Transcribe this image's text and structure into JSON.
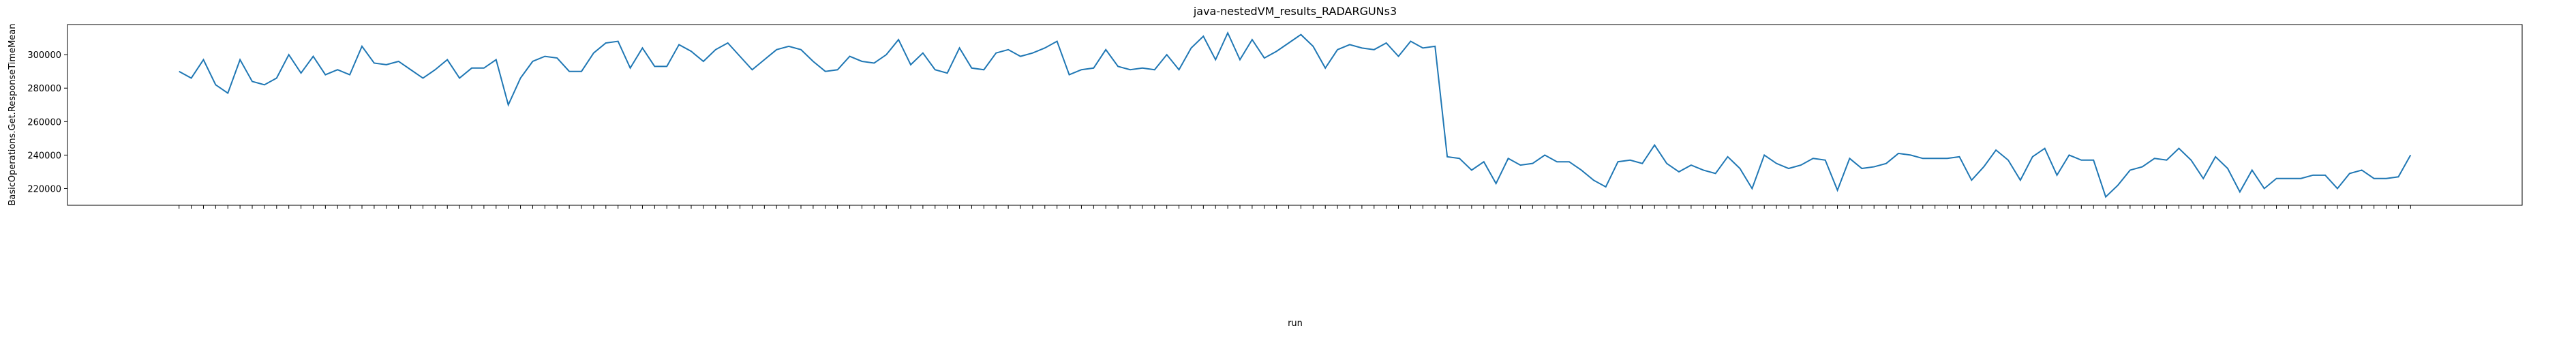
{
  "chart_data": {
    "type": "line",
    "title": "java-nestedVM_results_RADARGUNs3",
    "x_label": "run",
    "y_label": "BasicOperations.Get.ResponseTimeMean",
    "ylim": [
      210000,
      318000
    ],
    "yticks": [
      220000,
      240000,
      260000,
      280000,
      300000
    ],
    "grid": false,
    "categories": [
      null,
      null,
      null,
      null,
      null,
      null,
      null,
      null,
      null,
      null,
      null,
      null,
      null,
      null,
      null,
      null,
      null,
      null,
      null,
      null,
      null,
      null,
      null,
      null,
      null,
      null,
      null,
      null,
      null,
      null,
      null,
      null,
      null,
      null,
      null,
      null,
      null,
      null,
      null,
      null,
      null,
      null,
      null,
      null,
      null,
      null,
      null,
      null,
      null,
      null,
      null,
      null,
      null,
      null,
      null,
      null,
      null,
      null,
      null,
      null,
      null,
      null,
      null,
      null,
      null,
      null,
      null,
      null,
      null,
      null,
      null,
      null,
      null,
      null,
      null,
      null,
      null,
      null,
      null,
      null,
      null,
      null,
      null,
      null,
      null,
      null,
      null,
      null,
      null,
      null,
      null,
      null,
      null,
      null,
      null,
      null,
      null,
      null,
      null,
      null,
      null,
      null,
      null,
      null,
      null,
      null,
      null,
      null,
      null,
      null,
      null,
      null,
      null,
      null,
      null,
      null,
      null,
      null,
      null,
      null,
      null,
      null,
      null,
      null,
      null,
      null,
      null,
      null,
      null,
      null,
      null,
      null,
      null,
      null,
      null,
      null,
      null,
      null,
      null,
      null,
      null,
      null,
      null,
      null,
      null,
      null,
      null,
      null,
      null,
      null,
      null,
      null,
      null,
      null,
      null,
      null,
      null,
      null,
      null,
      null,
      null,
      null,
      null,
      null,
      null,
      null,
      null,
      null,
      null,
      null,
      null,
      null,
      null,
      null,
      null,
      null,
      null,
      null,
      null,
      null,
      null,
      null,
      null,
      null
    ],
    "series": [
      {
        "name": "BasicOperations.Get.ResponseTimeMean",
        "color": "#1f77b4",
        "values": [
          290000,
          286000,
          297000,
          282000,
          277000,
          297000,
          284000,
          282000,
          286000,
          300000,
          289000,
          299000,
          288000,
          291000,
          288000,
          305000,
          295000,
          294000,
          296000,
          291000,
          286000,
          291000,
          297000,
          286000,
          292000,
          292000,
          297000,
          270000,
          286000,
          296000,
          299000,
          298000,
          290000,
          290000,
          301000,
          307000,
          308000,
          292000,
          304000,
          293000,
          293000,
          306000,
          302000,
          296000,
          303000,
          307000,
          299000,
          291000,
          297000,
          303000,
          305000,
          303000,
          296000,
          290000,
          291000,
          299000,
          296000,
          295000,
          300000,
          309000,
          294000,
          301000,
          291000,
          289000,
          304000,
          292000,
          291000,
          301000,
          303000,
          299000,
          301000,
          304000,
          308000,
          288000,
          291000,
          292000,
          303000,
          293000,
          291000,
          292000,
          291000,
          300000,
          291000,
          304000,
          311000,
          297000,
          313000,
          297000,
          309000,
          298000,
          302000,
          307000,
          312000,
          305000,
          292000,
          303000,
          306000,
          304000,
          303000,
          307000,
          299000,
          308000,
          304000,
          305000,
          239000,
          238000,
          231000,
          236000,
          223000,
          238000,
          234000,
          235000,
          240000,
          236000,
          236000,
          231000,
          225000,
          221000,
          236000,
          237000,
          235000,
          246000,
          235000,
          230000,
          234000,
          231000,
          229000,
          239000,
          232000,
          220000,
          240000,
          235000,
          232000,
          234000,
          238000,
          237000,
          219000,
          238000,
          232000,
          233000,
          235000,
          241000,
          240000,
          238000,
          238000,
          238000,
          239000,
          225000,
          233000,
          243000,
          237000,
          225000,
          239000,
          244000,
          228000,
          240000,
          237000,
          237000,
          215000,
          222000,
          231000,
          233000,
          238000,
          237000,
          244000,
          237000,
          226000,
          239000,
          232000,
          218000,
          231000,
          220000,
          226000,
          226000,
          226000,
          228000,
          228000,
          220000,
          229000,
          231000,
          226000,
          226000,
          227000,
          240000
        ]
      }
    ]
  }
}
